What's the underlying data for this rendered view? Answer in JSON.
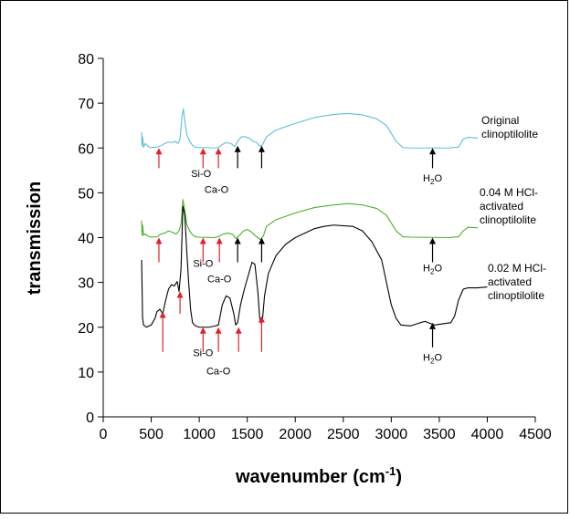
{
  "chart_data": {
    "type": "line",
    "title": "",
    "xlabel": "wavenumber",
    "xlabel_unit_prefix": "(cm",
    "xlabel_unit_exp": "-1",
    "xlabel_unit_suffix": ")",
    "ylabel": "transmission",
    "xlim": [
      0,
      4500
    ],
    "ylim": [
      0,
      80
    ],
    "xticks": [
      0,
      500,
      1000,
      1500,
      2000,
      2500,
      3000,
      3500,
      4000,
      4500
    ],
    "yticks": [
      0,
      10,
      20,
      30,
      40,
      50,
      60,
      70,
      80
    ],
    "grid": false,
    "series": [
      {
        "color": "#5bbfd9",
        "label_lines": [
          "Original",
          "clinoptilolite"
        ],
        "points": [
          [
            400,
            63.5
          ],
          [
            405,
            60.5
          ],
          [
            410,
            62.5
          ],
          [
            420,
            60.2
          ],
          [
            440,
            61
          ],
          [
            470,
            60.3
          ],
          [
            500,
            60.1
          ],
          [
            560,
            60.2
          ],
          [
            600,
            60.5
          ],
          [
            640,
            61
          ],
          [
            680,
            61.3
          ],
          [
            720,
            61.2
          ],
          [
            750,
            61.5
          ],
          [
            780,
            61
          ],
          [
            800,
            62
          ],
          [
            820,
            67
          ],
          [
            835,
            68.7
          ],
          [
            850,
            66
          ],
          [
            870,
            63
          ],
          [
            900,
            61.5
          ],
          [
            930,
            60.6
          ],
          [
            960,
            60.2
          ],
          [
            1000,
            60.1
          ],
          [
            1100,
            60.1
          ],
          [
            1150,
            60
          ],
          [
            1200,
            60.1
          ],
          [
            1240,
            60.8
          ],
          [
            1280,
            61.2
          ],
          [
            1330,
            61
          ],
          [
            1370,
            60.3
          ],
          [
            1400,
            61.5
          ],
          [
            1440,
            62.5
          ],
          [
            1480,
            62.5
          ],
          [
            1520,
            62.2
          ],
          [
            1560,
            61.5
          ],
          [
            1600,
            61.2
          ],
          [
            1620,
            60.6
          ],
          [
            1640,
            60.4
          ],
          [
            1660,
            60.8
          ],
          [
            1700,
            62.5
          ],
          [
            1800,
            64
          ],
          [
            2000,
            65.5
          ],
          [
            2200,
            66.8
          ],
          [
            2400,
            67.5
          ],
          [
            2550,
            67.7
          ],
          [
            2700,
            67.4
          ],
          [
            2850,
            66.5
          ],
          [
            2950,
            65
          ],
          [
            3050,
            61.5
          ],
          [
            3120,
            60.1
          ],
          [
            3200,
            60
          ],
          [
            3400,
            60
          ],
          [
            3600,
            60
          ],
          [
            3700,
            60.2
          ],
          [
            3750,
            62
          ],
          [
            3800,
            62.4
          ],
          [
            3900,
            62.2
          ]
        ]
      },
      {
        "color": "#4caf25",
        "label_lines": [
          "0.04 M HCl-",
          "activated",
          "clinoptilolite"
        ],
        "points": [
          [
            400,
            43.8
          ],
          [
            405,
            40.5
          ],
          [
            410,
            42.8
          ],
          [
            420,
            40.5
          ],
          [
            440,
            40.8
          ],
          [
            470,
            40.3
          ],
          [
            500,
            40.1
          ],
          [
            560,
            40.2
          ],
          [
            600,
            40.8
          ],
          [
            640,
            41
          ],
          [
            680,
            41.5
          ],
          [
            720,
            41.2
          ],
          [
            760,
            40.8
          ],
          [
            790,
            41.5
          ],
          [
            810,
            43
          ],
          [
            830,
            48.5
          ],
          [
            850,
            46
          ],
          [
            870,
            43
          ],
          [
            900,
            41.5
          ],
          [
            930,
            40.6
          ],
          [
            960,
            40.2
          ],
          [
            1000,
            40.1
          ],
          [
            1150,
            40
          ],
          [
            1200,
            40.2
          ],
          [
            1250,
            40.8
          ],
          [
            1300,
            41
          ],
          [
            1350,
            40.7
          ],
          [
            1380,
            39.8
          ],
          [
            1420,
            40.5
          ],
          [
            1460,
            41.5
          ],
          [
            1500,
            41.8
          ],
          [
            1540,
            41.3
          ],
          [
            1580,
            40.5
          ],
          [
            1620,
            39.8
          ],
          [
            1640,
            39.5
          ],
          [
            1670,
            40.5
          ],
          [
            1700,
            42.5
          ],
          [
            1800,
            44
          ],
          [
            2000,
            45.5
          ],
          [
            2200,
            46.7
          ],
          [
            2400,
            47.3
          ],
          [
            2550,
            47.6
          ],
          [
            2700,
            47.3
          ],
          [
            2850,
            46.5
          ],
          [
            2950,
            45
          ],
          [
            3050,
            41.5
          ],
          [
            3120,
            40.2
          ],
          [
            3200,
            40.1
          ],
          [
            3600,
            40
          ],
          [
            3700,
            40.2
          ],
          [
            3750,
            41.5
          ],
          [
            3800,
            42.3
          ],
          [
            3900,
            42.2
          ]
        ]
      },
      {
        "color": "#000000",
        "label_lines": [
          "0.02 M HCl-",
          "activated",
          "clinoptilolite"
        ],
        "points": [
          [
            400,
            35
          ],
          [
            410,
            22
          ],
          [
            420,
            20.5
          ],
          [
            450,
            20
          ],
          [
            500,
            20.5
          ],
          [
            540,
            22
          ],
          [
            560,
            23.5
          ],
          [
            590,
            24
          ],
          [
            620,
            23
          ],
          [
            650,
            26
          ],
          [
            680,
            28.5
          ],
          [
            710,
            29.5
          ],
          [
            740,
            29.2
          ],
          [
            770,
            30.2
          ],
          [
            790,
            28
          ],
          [
            810,
            33
          ],
          [
            830,
            47
          ],
          [
            850,
            45
          ],
          [
            870,
            37
          ],
          [
            890,
            30
          ],
          [
            910,
            24
          ],
          [
            930,
            21
          ],
          [
            960,
            20.3
          ],
          [
            1000,
            20
          ],
          [
            1100,
            20
          ],
          [
            1150,
            20.2
          ],
          [
            1200,
            20.5
          ],
          [
            1240,
            25
          ],
          [
            1280,
            27
          ],
          [
            1320,
            26.5
          ],
          [
            1360,
            23
          ],
          [
            1380,
            20.5
          ],
          [
            1400,
            21
          ],
          [
            1430,
            25
          ],
          [
            1470,
            28.5
          ],
          [
            1510,
            31.5
          ],
          [
            1550,
            34.5
          ],
          [
            1580,
            34
          ],
          [
            1610,
            28
          ],
          [
            1630,
            22
          ],
          [
            1640,
            21
          ],
          [
            1660,
            22
          ],
          [
            1680,
            27
          ],
          [
            1720,
            32
          ],
          [
            1800,
            36
          ],
          [
            1900,
            38.5
          ],
          [
            2000,
            40
          ],
          [
            2200,
            42
          ],
          [
            2300,
            42.5
          ],
          [
            2400,
            42.8
          ],
          [
            2600,
            42.5
          ],
          [
            2700,
            41.5
          ],
          [
            2800,
            39
          ],
          [
            2900,
            35
          ],
          [
            2950,
            30
          ],
          [
            3000,
            25
          ],
          [
            3050,
            22
          ],
          [
            3100,
            20.5
          ],
          [
            3200,
            20.3
          ],
          [
            3300,
            21
          ],
          [
            3350,
            21.3
          ],
          [
            3450,
            20.5
          ],
          [
            3550,
            20.8
          ],
          [
            3620,
            21
          ],
          [
            3660,
            22.5
          ],
          [
            3700,
            26
          ],
          [
            3750,
            28.5
          ],
          [
            3800,
            28.8
          ],
          [
            3900,
            28.8
          ],
          [
            4000,
            29
          ]
        ]
      }
    ],
    "arrows": [
      {
        "series_index": 0,
        "x": 580,
        "y_tip": 60,
        "y_tail": 55.5,
        "color": "#e0202a"
      },
      {
        "series_index": 0,
        "x": 1040,
        "y_tip": 60,
        "y_tail": 55.5,
        "color": "#e0202a"
      },
      {
        "series_index": 0,
        "x": 1200,
        "y_tip": 60,
        "y_tail": 55.5,
        "color": "#e0202a"
      },
      {
        "series_index": 0,
        "x": 1400,
        "y_tip": 60.5,
        "y_tail": 55.5,
        "color": "#000000"
      },
      {
        "series_index": 0,
        "x": 1650,
        "y_tip": 60.5,
        "y_tail": 55.5,
        "color": "#000000"
      },
      {
        "series_index": 0,
        "x": 3430,
        "y_tip": 60,
        "y_tail": 55.5,
        "color": "#000000"
      },
      {
        "series_index": 1,
        "x": 580,
        "y_tip": 40,
        "y_tail": 34.5,
        "color": "#e0202a"
      },
      {
        "series_index": 1,
        "x": 1040,
        "y_tip": 40,
        "y_tail": 34.5,
        "color": "#e0202a"
      },
      {
        "series_index": 1,
        "x": 1210,
        "y_tip": 40,
        "y_tail": 34.5,
        "color": "#e0202a"
      },
      {
        "series_index": 1,
        "x": 1400,
        "y_tip": 40,
        "y_tail": 34.5,
        "color": "#000000"
      },
      {
        "series_index": 1,
        "x": 1650,
        "y_tip": 40,
        "y_tail": 34.5,
        "color": "#000000"
      },
      {
        "series_index": 1,
        "x": 3430,
        "y_tip": 40,
        "y_tail": 34.5,
        "color": "#000000"
      },
      {
        "series_index": 2,
        "x": 620,
        "y_tip": 23.5,
        "y_tail": 14.5,
        "color": "#e0202a"
      },
      {
        "series_index": 2,
        "x": 800,
        "y_tip": 28,
        "y_tail": 23,
        "color": "#e0202a"
      },
      {
        "series_index": 2,
        "x": 1040,
        "y_tip": 20,
        "y_tail": 14.5,
        "color": "#e0202a"
      },
      {
        "series_index": 2,
        "x": 1200,
        "y_tip": 20,
        "y_tail": 14.5,
        "color": "#e0202a"
      },
      {
        "series_index": 2,
        "x": 1410,
        "y_tip": 20,
        "y_tail": 14.5,
        "color": "#e0202a"
      },
      {
        "series_index": 2,
        "x": 1650,
        "y_tip": 22.5,
        "y_tail": 14.5,
        "color": "#e0202a"
      },
      {
        "series_index": 2,
        "x": 3430,
        "y_tip": 21,
        "y_tail": 15.5,
        "color": "#000000"
      }
    ],
    "annotations": [
      {
        "text": "Si-O",
        "x": 1020,
        "y": 53.5
      },
      {
        "text": "Ca-O",
        "x": 1180,
        "y": 50
      },
      {
        "text": "Si-O",
        "x": 1040,
        "y": 33.5
      },
      {
        "text": "Ca-O",
        "x": 1210,
        "y": 30
      },
      {
        "text": "Si-O",
        "x": 1040,
        "y": 13.5
      },
      {
        "text": "Ca-O",
        "x": 1200,
        "y": 9.5
      }
    ],
    "water_labels": [
      {
        "base": "H",
        "sub": "2",
        "rest": "O",
        "x": 3430,
        "y": 52.5
      },
      {
        "base": "H",
        "sub": "2",
        "rest": "O",
        "x": 3430,
        "y": 32.5
      },
      {
        "base": "H",
        "sub": "2",
        "rest": "O",
        "x": 3430,
        "y": 12.5
      }
    ]
  }
}
